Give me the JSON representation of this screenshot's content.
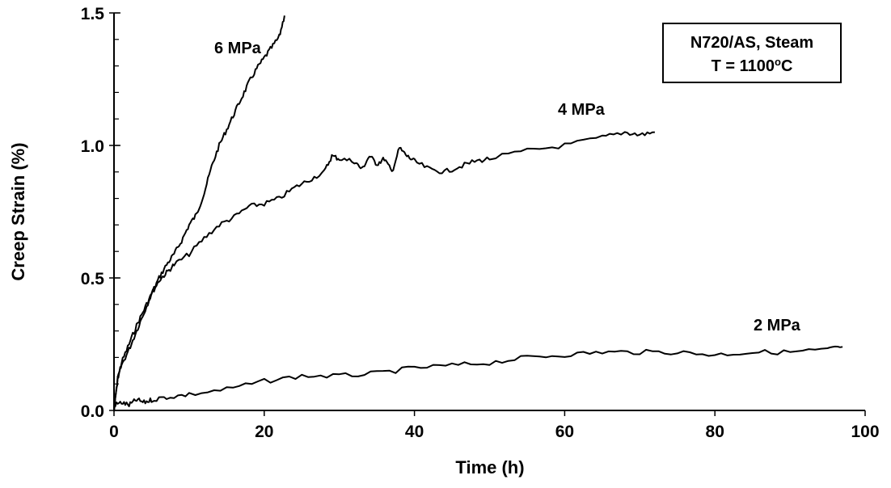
{
  "chart_data": {
    "type": "line",
    "title": "",
    "xlabel": "Time (h)",
    "ylabel": "Creep Strain (%)",
    "xlim": [
      0,
      100
    ],
    "ylim": [
      0,
      1.5
    ],
    "x_ticks": [
      0,
      20,
      40,
      60,
      80,
      100
    ],
    "x_tick_labels": [
      "0",
      "20",
      "40",
      "60",
      "80",
      "100"
    ],
    "y_ticks": [
      0,
      0.5,
      1.0,
      1.5
    ],
    "y_tick_labels": [
      "0.0",
      "0.5",
      "1.0",
      "1.5"
    ],
    "y_minor_step": 0.1,
    "grid": false,
    "annotation_box": {
      "line1": "N720/AS, Steam",
      "line2_prefix": "T = 1100",
      "line2_sup": "o",
      "line2_suffix": "C"
    },
    "series": [
      {
        "name": "6 MPa",
        "x": [
          0,
          0.5,
          1,
          2,
          3,
          4,
          5,
          6,
          7,
          8,
          9,
          10,
          11,
          12,
          13,
          14,
          15,
          16,
          17,
          18,
          19,
          20,
          21,
          22,
          22.7
        ],
        "y": [
          0.0,
          0.12,
          0.18,
          0.25,
          0.32,
          0.38,
          0.44,
          0.5,
          0.55,
          0.59,
          0.64,
          0.7,
          0.74,
          0.82,
          0.92,
          1.0,
          1.06,
          1.12,
          1.18,
          1.24,
          1.29,
          1.33,
          1.37,
          1.41,
          1.49
        ]
      },
      {
        "name": "4 MPa",
        "x": [
          0,
          0.5,
          1,
          2,
          3,
          4,
          5,
          6,
          7,
          8,
          10,
          12,
          14,
          16,
          18,
          20,
          22,
          24,
          26,
          28,
          29,
          30,
          32,
          33,
          34,
          35,
          36,
          37,
          38,
          39,
          40,
          42,
          44,
          46,
          48,
          50,
          55,
          60,
          65,
          68,
          70,
          72
        ],
        "y": [
          0.0,
          0.12,
          0.17,
          0.23,
          0.3,
          0.37,
          0.44,
          0.49,
          0.52,
          0.55,
          0.59,
          0.65,
          0.7,
          0.73,
          0.77,
          0.78,
          0.8,
          0.84,
          0.87,
          0.9,
          0.96,
          0.95,
          0.94,
          0.91,
          0.96,
          0.93,
          0.95,
          0.9,
          0.99,
          0.96,
          0.94,
          0.91,
          0.9,
          0.92,
          0.94,
          0.95,
          0.98,
          1.0,
          1.03,
          1.05,
          1.04,
          1.05
        ]
      },
      {
        "name": "2 MPa",
        "x": [
          0,
          1,
          2,
          3,
          4,
          5,
          7,
          10,
          15,
          20,
          25,
          30,
          35,
          40,
          45,
          50,
          55,
          60,
          65,
          70,
          75,
          80,
          85,
          90,
          95,
          97
        ],
        "y": [
          0.02,
          0.03,
          0.02,
          0.04,
          0.03,
          0.04,
          0.05,
          0.06,
          0.08,
          0.11,
          0.13,
          0.13,
          0.14,
          0.16,
          0.17,
          0.18,
          0.2,
          0.21,
          0.22,
          0.22,
          0.22,
          0.21,
          0.22,
          0.22,
          0.23,
          0.24
        ]
      }
    ]
  }
}
